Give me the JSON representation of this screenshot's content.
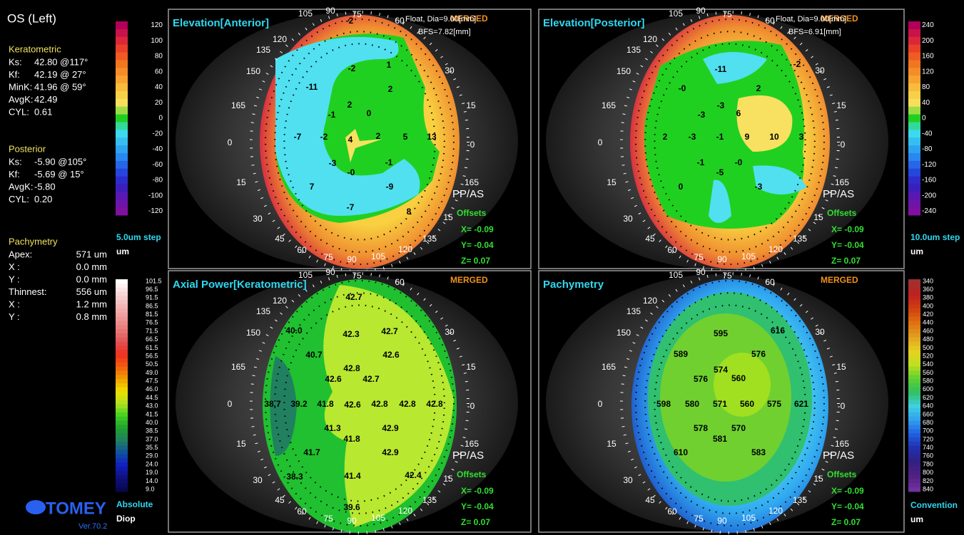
{
  "sidebar": {
    "title": "OS (Left)",
    "keratometric": {
      "heading": "Keratometric",
      "rows": [
        [
          "Ks:",
          "42.80 @117°"
        ],
        [
          "Kf:",
          "42.19 @ 27°"
        ],
        [
          "MinK:",
          "41.96 @ 59°"
        ],
        [
          "AvgK:",
          "42.49"
        ],
        [
          "CYL:",
          "0.61"
        ]
      ]
    },
    "posterior": {
      "heading": "Posterior",
      "rows": [
        [
          "Ks:",
          "-5.90 @105°"
        ],
        [
          "Kf:",
          "-5.69 @ 15°"
        ],
        [
          "AvgK:",
          "-5.80"
        ],
        [
          "CYL:",
          "0.20"
        ]
      ]
    },
    "pachymetry": {
      "heading": "Pachymetry",
      "rows": [
        [
          "Apex:",
          "571 um"
        ],
        [
          "X :",
          "0.0 mm"
        ],
        [
          "Y :",
          "0.0 mm"
        ],
        [
          "Thinnest:",
          "556 um"
        ],
        [
          "X :",
          "1.2 mm"
        ],
        [
          "Y :",
          "0.8 mm"
        ]
      ]
    },
    "logo": "TOMEY",
    "version": "Ver.70.2"
  },
  "scales": [
    {
      "labels": [
        "120",
        "100",
        "80",
        "60",
        "40",
        "20",
        "0",
        "-20",
        "-40",
        "-60",
        "-80",
        "-100",
        "-120"
      ],
      "footer": [
        "5.0um step",
        "um"
      ]
    },
    {
      "labels": [
        "240",
        "200",
        "160",
        "120",
        "80",
        "40",
        "0",
        "-40",
        "-80",
        "-120",
        "-160",
        "-200",
        "-240"
      ],
      "footer": [
        "10.0um step",
        "um"
      ]
    },
    {
      "labels": [
        "101.5",
        "96.5",
        "91.5",
        "86.5",
        "81.5",
        "76.5",
        "71.5",
        "66.5",
        "61.5",
        "56.5",
        "50.5",
        "49.0",
        "47.5",
        "46.0",
        "44.5",
        "43.0",
        "41.5",
        "40.0",
        "38.5",
        "37.0",
        "35.5",
        "29.0",
        "24.0",
        "19.0",
        "14.0",
        "9.0"
      ],
      "footer": [
        "Absolute",
        "Diop"
      ]
    },
    {
      "labels": [
        "340",
        "360",
        "380",
        "400",
        "420",
        "440",
        "460",
        "480",
        "500",
        "520",
        "540",
        "560",
        "580",
        "600",
        "620",
        "640",
        "660",
        "680",
        "700",
        "720",
        "740",
        "760",
        "780",
        "800",
        "820",
        "840"
      ],
      "footer": [
        "Convention",
        "um"
      ]
    }
  ],
  "ring_labels": [
    "105",
    "90",
    "75",
    "60",
    "120",
    "135",
    "150",
    "165",
    "0",
    "15",
    "30",
    "45",
    "60",
    "75",
    "90",
    "105",
    "120",
    "135",
    "15",
    "165",
    "-0",
    "15",
    "30"
  ],
  "maps": [
    {
      "title": "Elevation[Anterior]",
      "badge": "MERGED",
      "info": [
        "Float, Dia=9.00[mm]",
        "BFS=7.82[mm]"
      ],
      "values": [
        "-2",
        "-2",
        "1",
        "-11",
        "2",
        "2",
        "-1",
        "0",
        "-7",
        "-2",
        "4",
        "2",
        "5",
        "13",
        "-3",
        "-1",
        "-0",
        "7",
        "-9",
        "-7",
        "8"
      ],
      "pp": "PP/AS",
      "offsets": "Offsets",
      "offset_values": [
        "X= -0.09",
        "Y= -0.04",
        "Z= 0.07"
      ]
    },
    {
      "title": "Elevation[Posterior]",
      "badge": "MERGED",
      "info": [
        "Float, Dia=9.00[mm]",
        "BFS=6.91[mm]"
      ],
      "values": [
        "-11",
        "-2",
        "2",
        "-0",
        "-3",
        "-3",
        "6",
        "2",
        "-3",
        "-1",
        "9",
        "10",
        "3",
        "-1",
        "-0",
        "-5",
        "0",
        "-3"
      ],
      "pp": "PP/AS",
      "offsets": "Offsets",
      "offset_values": [
        "X= -0.09",
        "Y= -0.04",
        "Z= 0.07"
      ]
    },
    {
      "title": "Axial Power[Keratometric]",
      "badge": "MERGED",
      "info": [],
      "values": [
        "42.7",
        "40.0",
        "42.3",
        "42.7",
        "42.6",
        "40.7",
        "42.8",
        "42.6",
        "42.7",
        "38.7",
        "39.2",
        "41.8",
        "42.6",
        "42.8",
        "42.8",
        "42.8",
        "41.3",
        "42.9",
        "41.8",
        "41.7",
        "42.9",
        "38.3",
        "41.4",
        "42.4",
        "39.6"
      ],
      "pp": "PP/AS",
      "offsets": "Offsets",
      "offset_values": [
        "X= -0.09",
        "Y= -0.04",
        "Z= 0.07"
      ]
    },
    {
      "title": "Pachymetry",
      "badge": "MERGED",
      "info": [],
      "values": [
        "595",
        "616",
        "589",
        "576",
        "574",
        "576",
        "560",
        "598",
        "580",
        "571",
        "560",
        "575",
        "621",
        "578",
        "570",
        "581",
        "610",
        "583"
      ],
      "pp": "PP/AS",
      "offsets": "Offsets",
      "offset_values": [
        "X= -0.09",
        "Y= -0.04",
        "Z= 0.07"
      ]
    }
  ]
}
